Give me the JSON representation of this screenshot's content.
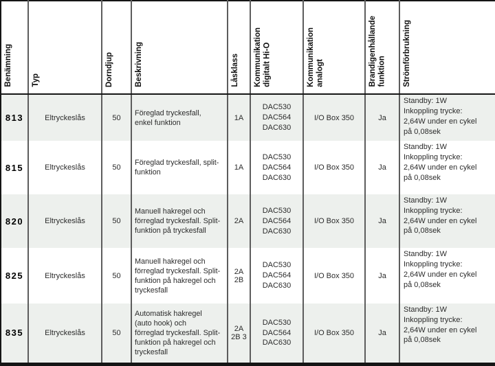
{
  "colors": {
    "stripe_row_bg": "#edf0ed",
    "outer_border": "#151515",
    "inner_column_rule": "#5c5c5c"
  },
  "table": {
    "columns": [
      {
        "label": "Benämning"
      },
      {
        "label": "Typ"
      },
      {
        "label": "Dorndjup"
      },
      {
        "label": "Beskrivning"
      },
      {
        "label": "Låsklass"
      },
      {
        "label": "Kommunikation\ndigitalt Hi-O"
      },
      {
        "label": "Kommunikation\nanalogt"
      },
      {
        "label": "Brandigenhållande\nfunktion"
      },
      {
        "label": "Strömförbrukning"
      }
    ],
    "rows": [
      {
        "benamning": "813",
        "typ": "Eltryckeslås",
        "dorndjup": "50",
        "beskrivning": "Föreglad tryckesfall,\nenkel funktion",
        "lasklass": "1A",
        "komm_digital": "DAC530\nDAC564\nDAC630",
        "komm_analog": "I/O Box 350",
        "brand": "Ja",
        "strom": "Standby: 1W\nInkoppling trycke:\n2,64W under en cykel\npå 0,08sek"
      },
      {
        "benamning": "815",
        "typ": "Eltryckeslås",
        "dorndjup": "50",
        "beskrivning": "Föreglad tryckesfall, split-\nfunktion",
        "lasklass": "1A",
        "komm_digital": "DAC530\nDAC564\nDAC630",
        "komm_analog": "I/O Box 350",
        "brand": "Ja",
        "strom": "Standby: 1W\nInkoppling trycke:\n2,64W under en cykel\npå 0,08sek"
      },
      {
        "benamning": "820",
        "typ": "Eltryckeslås",
        "dorndjup": "50",
        "beskrivning": "Manuell hakregel och\nförreglad tryckesfall. Split-\nfunktion på tryckesfall",
        "lasklass": "2A",
        "komm_digital": "DAC530\nDAC564\nDAC630",
        "komm_analog": "I/O Box 350",
        "brand": "Ja",
        "strom": "Standby: 1W\nInkoppling trycke:\n2,64W under en cykel\npå 0,08sek"
      },
      {
        "benamning": "825",
        "typ": "Eltryckeslås",
        "dorndjup": "50",
        "beskrivning": "Manuell hakregel och\nförreglad tryckesfall. Split-\nfunktion på hakregel och\ntryckesfall",
        "lasklass": "2A\n2B",
        "komm_digital": "DAC530\nDAC564\nDAC630",
        "komm_analog": "I/O Box 350",
        "brand": "Ja",
        "strom": "Standby: 1W\nInkoppling trycke:\n2,64W under en cykel\npå 0,08sek"
      },
      {
        "benamning": "835",
        "typ": "Eltryckeslås",
        "dorndjup": "50",
        "beskrivning": "Automatisk hakregel\n(auto hook) och\nförreglad tryckesfall. Split-\nfunktion på hakregel och\ntryckesfall",
        "lasklass": "2A\n2B 3",
        "komm_digital": "DAC530\nDAC564\nDAC630",
        "komm_analog": "I/O Box 350",
        "brand": "Ja",
        "strom": "Standby: 1W\nInkoppling trycke:\n2,64W under en cykel\npå 0,08sek"
      }
    ]
  }
}
